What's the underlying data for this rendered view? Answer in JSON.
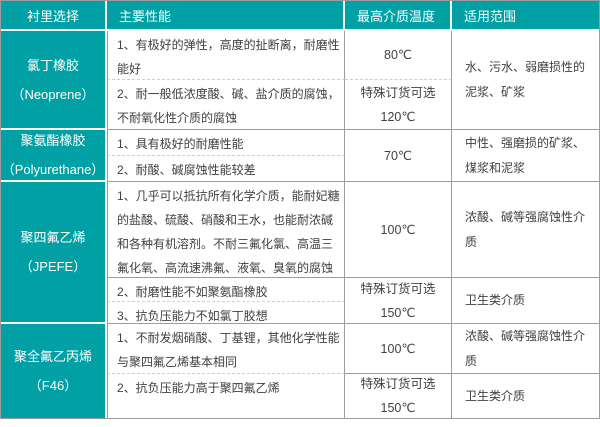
{
  "colors": {
    "accent": "#00a0a5",
    "border_solid": "#9c9c9c",
    "border_dashed": "#cfcfcf",
    "text": "#404040"
  },
  "header": {
    "lining": "衬里选择",
    "performance": "主要性能",
    "max_temp": "最高介质温度",
    "application": "适用范围"
  },
  "groups": [
    {
      "name": "氯丁橡胶",
      "code": "（Neoprene）",
      "rows": [
        {
          "perf": "1、有极好的弹性，高度的扯断离，耐磨性\n能好",
          "temp": "80℃"
        },
        {
          "perf": "2、耐一般低浓度酸、碱、盐介质的腐蚀，\n不耐氧化性介质的腐蚀",
          "temp": "特殊订货可选\n120℃"
        }
      ],
      "range": "水、污水、弱磨损性的\n泥浆、矿浆"
    },
    {
      "name": "聚氨酯橡胶",
      "code": "（Polyurethane）",
      "rows": [
        {
          "perf": "1、具有极好的耐磨性能",
          "temp": "70℃"
        },
        {
          "perf": "2、耐酸、碱腐蚀性能较差"
        }
      ],
      "range": "中性、强磨损的矿浆、\n煤浆和泥浆"
    },
    {
      "name": "聚四氟乙烯",
      "code": "（JPEFE）",
      "rows": [
        {
          "perf": "1、几乎可以抵抗所有化学介质，能耐妃糖\n的盐酸、硫酸、硝酸和王水，也能耐浓碱\n和各种有机溶剂。不耐三氟化氯、高温三\n氟化氧、高流速沸氟、液氧、臭氧的腐蚀",
          "temp": "100℃",
          "range": "浓酸、碱等强腐蚀性介\n质"
        },
        {
          "perf": "2、耐磨性能不如聚氨酯橡胶",
          "temp": "特殊订货可选\n150℃",
          "range": "卫生类介质"
        },
        {
          "perf": "3、抗负压能力不如氯丁胶想"
        }
      ]
    },
    {
      "name": "聚全氟乙丙烯",
      "code": "（F46）",
      "rows": [
        {
          "perf": "1、不耐发烟硝酸、丁基锂，其他化学性能\n与聚四氟乙烯基本相同",
          "temp": "100℃",
          "range": "浓酸、碱等强腐蚀性介\n质"
        },
        {
          "perf": "2、抗负压能力高于聚四氟乙烯",
          "temp": "特殊订货可选\n150℃",
          "range": "卫生类介质"
        }
      ]
    }
  ]
}
